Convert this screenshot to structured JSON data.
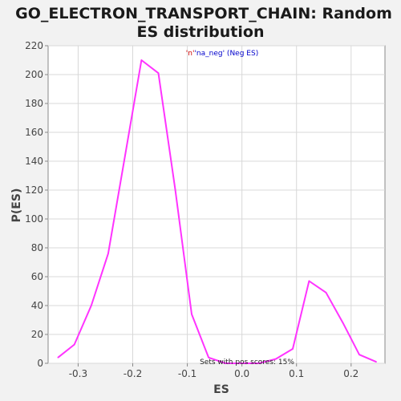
{
  "chart_data": {
    "type": "line",
    "title_line1": "GO_ELECTRON_TRANSPORT_CHAIN: Random",
    "title_line2": "ES distribution",
    "xlabel": "ES",
    "ylabel": "P(ES)",
    "xlim": [
      -0.355,
      0.262
    ],
    "ylim": [
      0,
      220
    ],
    "x_ticks": [
      -0.3,
      -0.2,
      -0.1,
      0.0,
      0.1,
      0.2
    ],
    "x_tick_labels": [
      "-0.3",
      "-0.2",
      "-0.1",
      "0.0",
      "0.1",
      "0.2"
    ],
    "y_ticks": [
      0,
      20,
      40,
      60,
      80,
      100,
      120,
      140,
      160,
      180,
      200,
      220
    ],
    "y_tick_labels": [
      "0",
      "20",
      "40",
      "60",
      "80",
      "100",
      "120",
      "140",
      "160",
      "180",
      "200",
      "220"
    ],
    "grid": true,
    "legend": {
      "placement": "top-center",
      "part1": "'n'",
      "part2": "'na_neg' (Neg ES)",
      "color1": "#cc0000",
      "color2": "#0000cc"
    },
    "annotation": "Sets with pos scores: 15%",
    "series": [
      {
        "color": "#ff33ff",
        "x": [
          -0.337,
          -0.307,
          -0.276,
          -0.245,
          -0.214,
          -0.184,
          -0.153,
          -0.122,
          -0.092,
          -0.061,
          -0.03,
          0.001,
          0.031,
          0.062,
          0.093,
          0.123,
          0.154,
          0.185,
          0.215,
          0.246
        ],
        "y": [
          4,
          13,
          40,
          76,
          144,
          210,
          201,
          120,
          34,
          4,
          0,
          0,
          0,
          3,
          10,
          57,
          49,
          28,
          6,
          1
        ]
      }
    ]
  }
}
